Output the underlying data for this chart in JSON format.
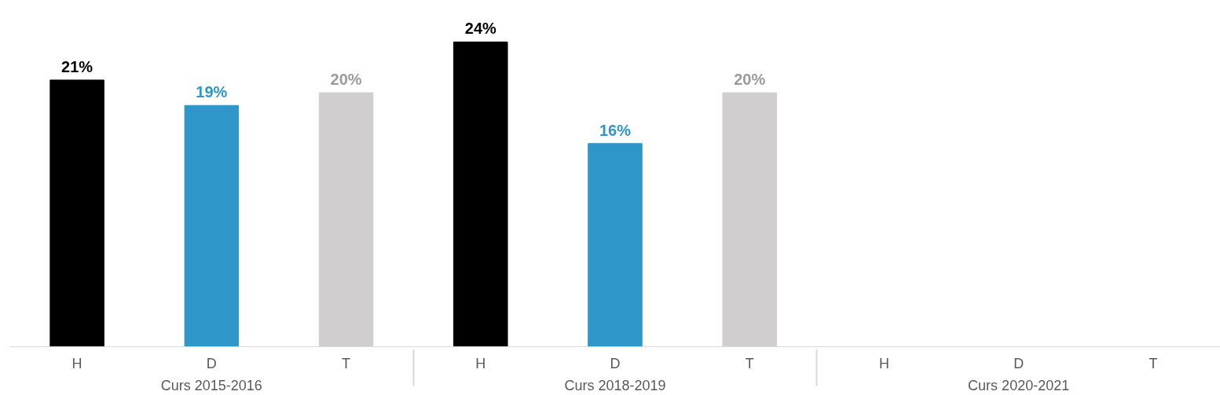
{
  "chart_data": {
    "type": "bar",
    "categories": [
      "H",
      "D",
      "T",
      "H",
      "D",
      "T",
      "H",
      "D",
      "T"
    ],
    "values": [
      21,
      19,
      20,
      24,
      16,
      20,
      null,
      null,
      null
    ],
    "colors": [
      "#000000",
      "#2e96c8",
      "#d0cece",
      "#000000",
      "#2e96c8",
      "#d0cece",
      "#000000",
      "#2e96c8",
      "#d0cece"
    ],
    "annotations": [
      "Curs 2015-2016",
      "Curs 2018-2019",
      "Curs 2020-2021"
    ],
    "value_labels": [
      "21%",
      "19%",
      "20%",
      "24%",
      "16%",
      "20%",
      null,
      null,
      null
    ],
    "tick_labels": "x",
    "grid": false,
    "data_labels": false
  }
}
